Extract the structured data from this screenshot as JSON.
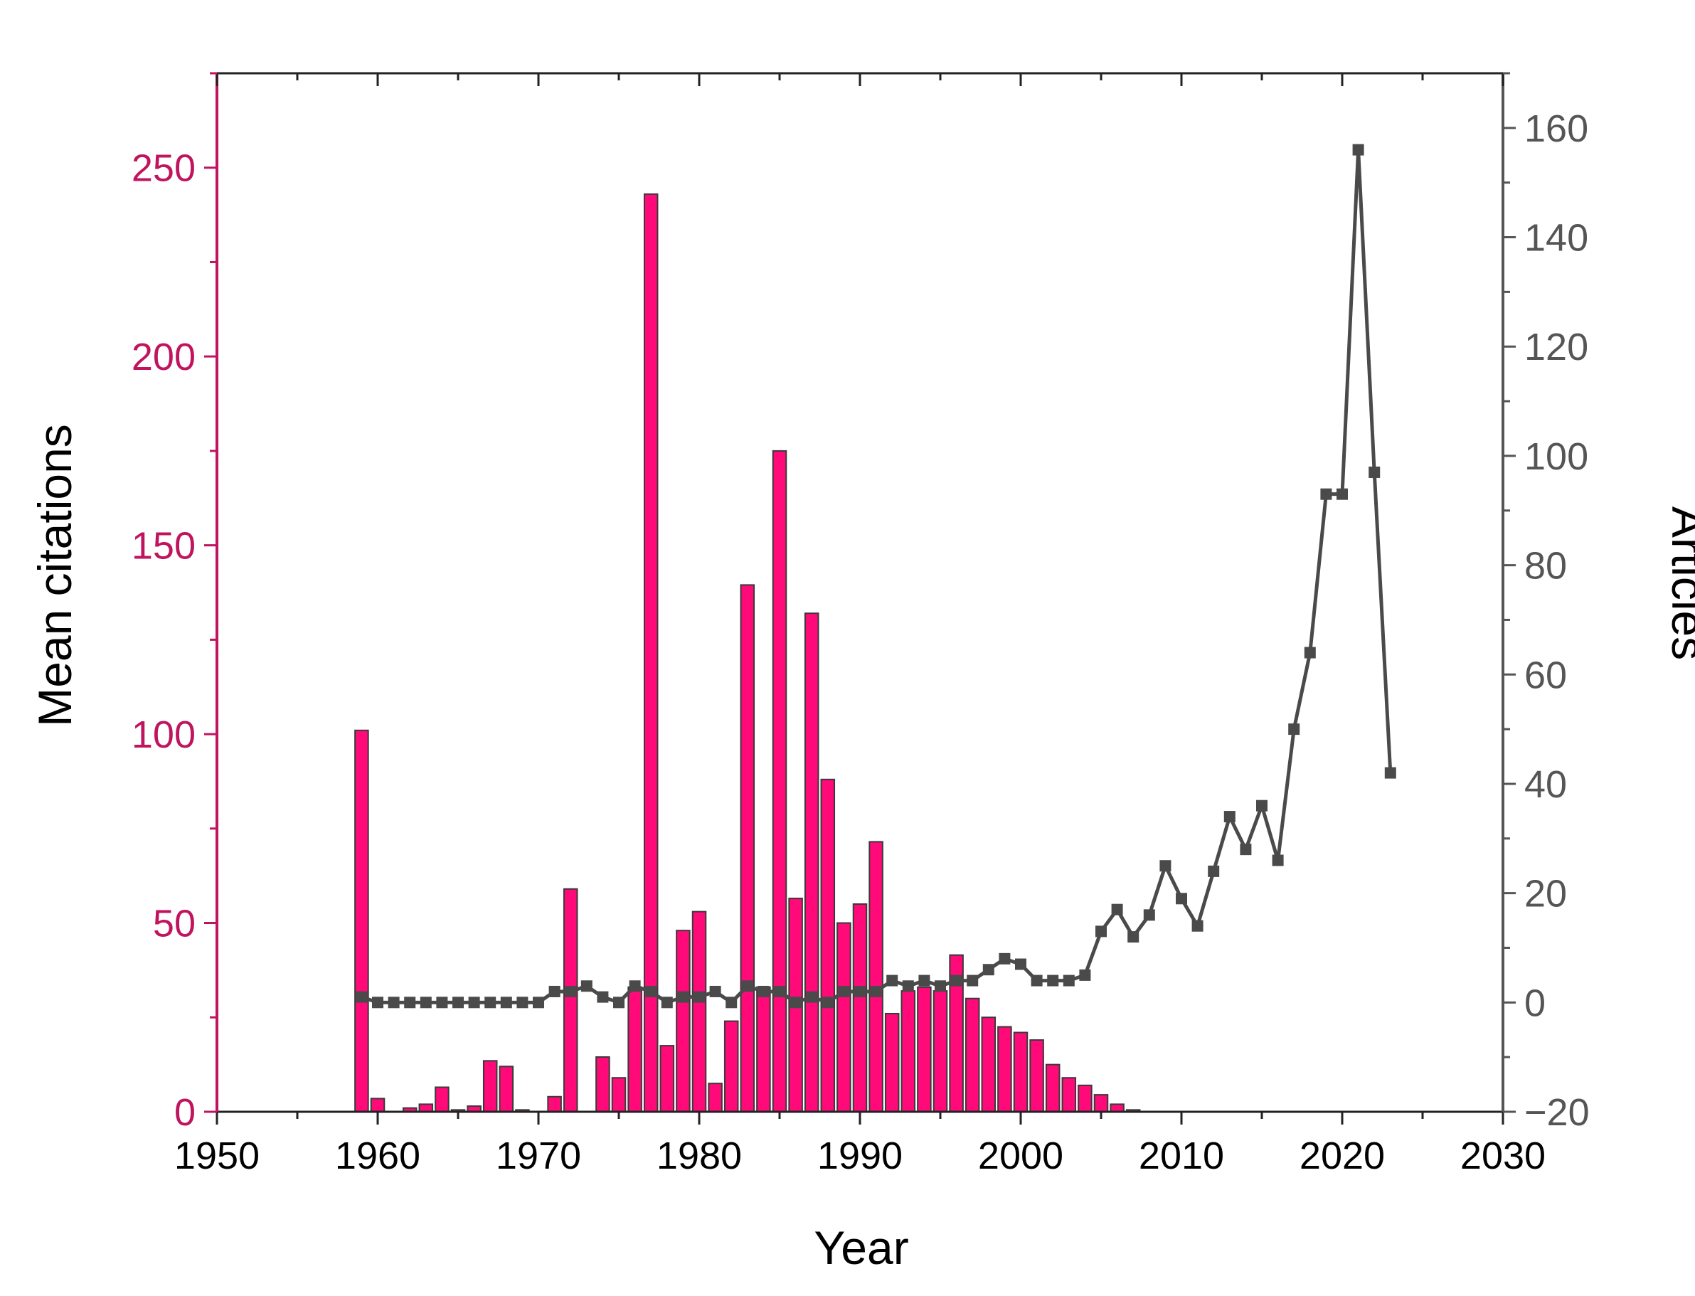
{
  "chart_data": {
    "type": "bar",
    "xlabel": "Year",
    "ylabel": "Mean citations",
    "y2label": "Articles",
    "xlim": [
      1950,
      2030
    ],
    "ylim": [
      0,
      275
    ],
    "y2lim": [
      -20,
      170
    ],
    "xticks": [
      "1950",
      "1960",
      "1970",
      "1980",
      "1990",
      "2000",
      "2010",
      "2020",
      "2030"
    ],
    "yticks": [
      "0",
      "50",
      "100",
      "150",
      "200",
      "250"
    ],
    "y2ticks": [
      "−20",
      "0",
      "20",
      "40",
      "60",
      "80",
      "100",
      "120",
      "140",
      "160"
    ],
    "colors": {
      "bars": "#ff0a78",
      "left_axis": "#c0145f",
      "line": "#4a4a4a",
      "right_axis": "#555555"
    },
    "grid": false,
    "legend": "none",
    "series": [
      {
        "kind": "bar",
        "axis": "left",
        "x": [
          1959,
          1960,
          1962,
          1963,
          1964,
          1965,
          1966,
          1967,
          1968,
          1969,
          1971,
          1972,
          1974,
          1975,
          1976,
          1977,
          1978,
          1979,
          1980,
          1981,
          1982,
          1983,
          1984,
          1985,
          1986,
          1987,
          1988,
          1989,
          1990,
          1991,
          1992,
          1993,
          1994,
          1995,
          1996,
          1997,
          1998,
          1999,
          2000,
          2001,
          2002,
          2003,
          2004,
          2005,
          2006,
          2007
        ],
        "values": [
          101,
          3.5,
          1,
          2,
          6.5,
          0.5,
          1.5,
          13.5,
          12,
          0.5,
          4,
          59,
          14.5,
          9,
          33,
          243,
          17.5,
          48,
          53,
          7.5,
          24,
          139.5,
          33,
          175,
          56.5,
          132,
          88,
          50,
          55,
          71.5,
          26,
          32,
          33,
          32,
          41.5,
          30,
          25,
          22.5,
          21,
          19,
          12.5,
          9,
          7,
          4.5,
          2,
          0.5
        ]
      },
      {
        "kind": "line",
        "axis": "right",
        "x": [
          1959,
          1960,
          1961,
          1962,
          1963,
          1964,
          1965,
          1966,
          1967,
          1968,
          1969,
          1970,
          1971,
          1972,
          1973,
          1974,
          1975,
          1976,
          1977,
          1978,
          1979,
          1980,
          1981,
          1982,
          1983,
          1984,
          1985,
          1986,
          1987,
          1988,
          1989,
          1990,
          1991,
          1992,
          1993,
          1994,
          1995,
          1996,
          1997,
          1998,
          1999,
          2000,
          2001,
          2002,
          2003,
          2004,
          2005,
          2006,
          2007,
          2008,
          2009,
          2010,
          2011,
          2012,
          2013,
          2014,
          2015,
          2016,
          2017,
          2018,
          2019,
          2020,
          2021,
          2022,
          2023
        ],
        "values": [
          1,
          0,
          0,
          0,
          0,
          0,
          0,
          0,
          0,
          0,
          0,
          0,
          2,
          2,
          3,
          1,
          0,
          3,
          2,
          0,
          1,
          1,
          2,
          0,
          3,
          2,
          2,
          0,
          1,
          0,
          2,
          2,
          2,
          4,
          3,
          4,
          3,
          4,
          4,
          6,
          8,
          7,
          4,
          4,
          4,
          5,
          13,
          17,
          12,
          16,
          25,
          19,
          14,
          24,
          34,
          28,
          36,
          26,
          50,
          64,
          93,
          93,
          156,
          97,
          42
        ]
      }
    ]
  }
}
